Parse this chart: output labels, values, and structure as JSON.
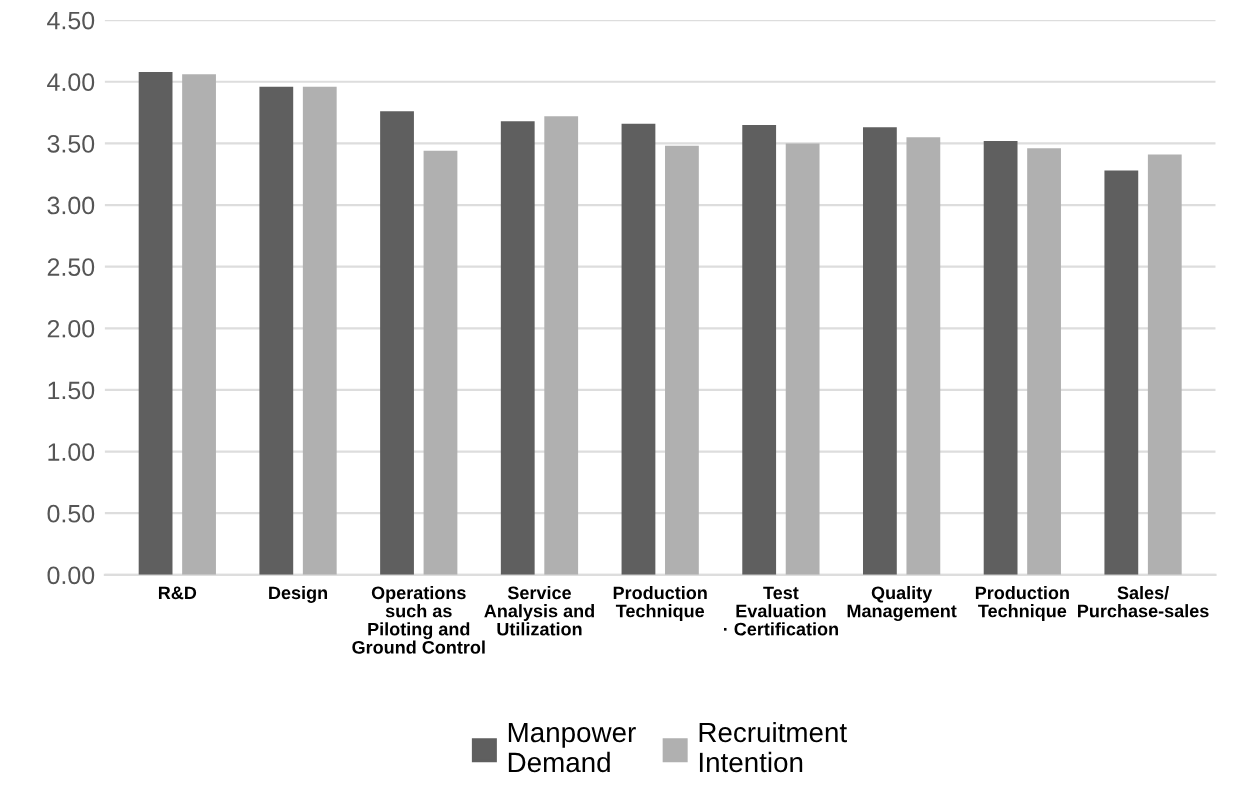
{
  "chart_data": {
    "type": "bar",
    "categories": [
      "R&D",
      "Design",
      "Operations\nsuch as\nPiloting and\nGround Control",
      "Service\nAnalysis and\nUtilization",
      "Production\nTechnique",
      "Test\nEvaluation\n· Certification",
      "Quality\nManagement",
      "Production\nTechnique",
      "Sales/\nPurchase-sales"
    ],
    "series": [
      {
        "name": "Manpower\nDemand",
        "color": "#5f5f5f",
        "values": [
          4.08,
          3.96,
          3.76,
          3.68,
          3.66,
          3.65,
          3.63,
          3.52,
          3.28
        ]
      },
      {
        "name": "Recruitment\nIntention",
        "color": "#b0b0b0",
        "values": [
          4.06,
          3.96,
          3.44,
          3.72,
          3.48,
          3.5,
          3.55,
          3.46,
          3.41
        ]
      }
    ],
    "ylim": [
      0,
      4.5
    ],
    "yticks": [
      {
        "value": 0,
        "label": "0.00"
      },
      {
        "value": 0.5,
        "label": "0.50"
      },
      {
        "value": 1,
        "label": "1.00"
      },
      {
        "value": 1.5,
        "label": "1.50"
      },
      {
        "value": 2,
        "label": "2.00"
      },
      {
        "value": 2.5,
        "label": "2.50"
      },
      {
        "value": 3,
        "label": "3.00"
      },
      {
        "value": 3.5,
        "label": "3.50"
      },
      {
        "value": 4,
        "label": "4.00"
      },
      {
        "value": 4.5,
        "label": "4.50"
      }
    ],
    "grid": "y",
    "legend": "bottom"
  }
}
